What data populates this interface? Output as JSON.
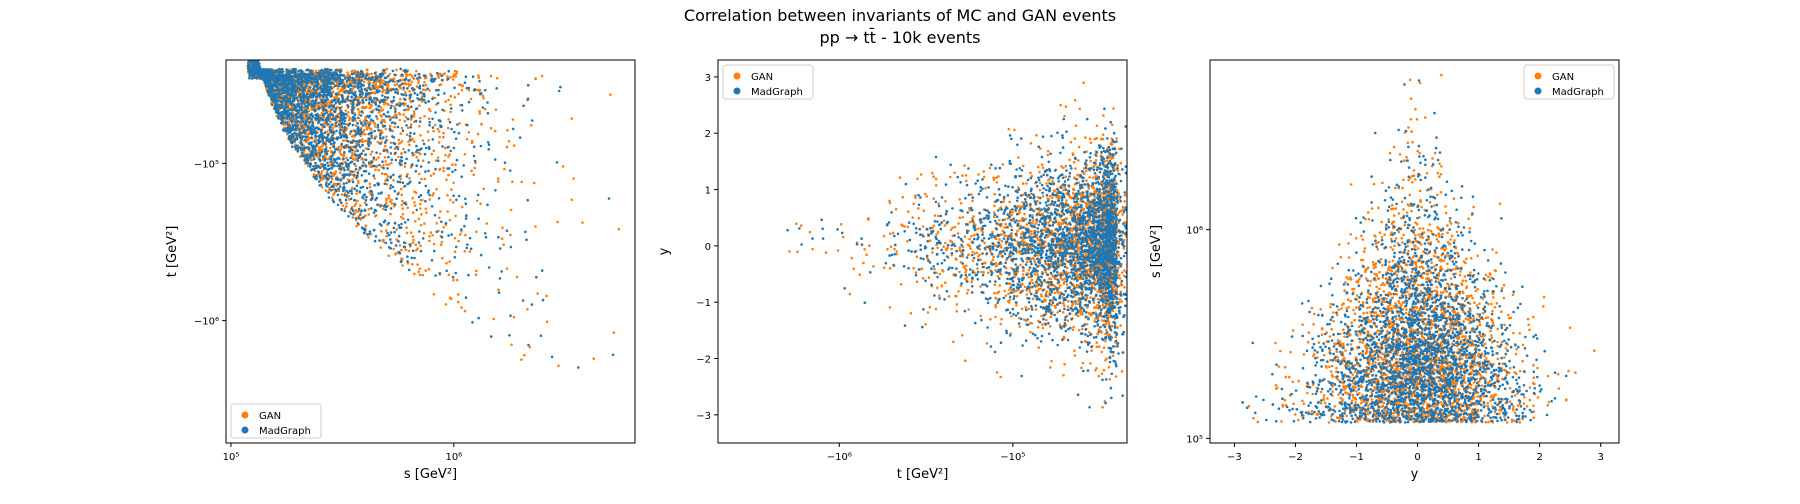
{
  "title": "Correlation between invariants of MC and GAN events",
  "subtitle": "pp → tt̄ - 10k events",
  "colors": {
    "GAN": "#ff7f0e",
    "MadGraph": "#1f77b4"
  },
  "chart_data": [
    {
      "type": "scatter",
      "xlabel": "s [GeV²]",
      "ylabel": "t [GeV²]",
      "xscale": "log",
      "yscale": "symlog-negative",
      "xlim": [
        95000,
        6500000
      ],
      "ylim": [
        -6000000,
        -22000
      ],
      "xticks": [
        {
          "v": 100000,
          "label": "10⁵"
        },
        {
          "v": 1000000,
          "label": "10⁶"
        }
      ],
      "yticks": [
        {
          "v": -100000,
          "label": "−10⁵"
        },
        {
          "v": -1000000,
          "label": "−10⁶"
        }
      ],
      "legend": {
        "position": "lower-left",
        "entries": [
          "GAN",
          "MadGraph"
        ]
      },
      "series": [
        {
          "name": "MadGraph",
          "note": "dense wedge: s from 1.2e5 to 5e6, t between about -2.5e4 and -(s-1.1e5)",
          "color": "#1f77b4"
        },
        {
          "name": "GAN",
          "color": "#ff7f0e"
        }
      ]
    },
    {
      "type": "scatter",
      "xlabel": "t [GeV²]",
      "ylabel": "y",
      "xscale": "symlog-negative",
      "xlim": [
        -5000000,
        -22000
      ],
      "ylim": [
        -3.5,
        3.3
      ],
      "xticks": [
        {
          "v": -1000000,
          "label": "−10⁶"
        },
        {
          "v": -100000,
          "label": "−10⁵"
        }
      ],
      "yticks": [
        {
          "v": 3,
          "label": "3"
        },
        {
          "v": 2,
          "label": "2"
        },
        {
          "v": 1,
          "label": "1"
        },
        {
          "v": 0,
          "label": "0"
        },
        {
          "v": -1,
          "label": "−1"
        },
        {
          "v": -2,
          "label": "−2"
        },
        {
          "v": -3,
          "label": "−3"
        }
      ],
      "legend": {
        "position": "upper-left",
        "entries": [
          "GAN",
          "MadGraph"
        ]
      },
      "series": [
        {
          "name": "MadGraph",
          "color": "#1f77b4"
        },
        {
          "name": "GAN",
          "color": "#ff7f0e"
        }
      ]
    },
    {
      "type": "scatter",
      "xlabel": "y",
      "ylabel": "s [GeV²]",
      "yscale": "log",
      "xlim": [
        -3.4,
        3.3
      ],
      "ylim": [
        95000,
        6500000
      ],
      "xticks": [
        {
          "v": -3,
          "label": "−3"
        },
        {
          "v": -2,
          "label": "−2"
        },
        {
          "v": -1,
          "label": "−1"
        },
        {
          "v": 0,
          "label": "0"
        },
        {
          "v": 1,
          "label": "1"
        },
        {
          "v": 2,
          "label": "2"
        },
        {
          "v": 3,
          "label": "3"
        }
      ],
      "yticks": [
        {
          "v": 100000,
          "label": "10⁵"
        },
        {
          "v": 1000000,
          "label": "10⁶"
        }
      ],
      "legend": {
        "position": "upper-right",
        "entries": [
          "GAN",
          "MadGraph"
        ]
      },
      "series": [
        {
          "name": "MadGraph",
          "color": "#1f77b4"
        },
        {
          "name": "GAN",
          "color": "#ff7f0e"
        }
      ]
    }
  ]
}
